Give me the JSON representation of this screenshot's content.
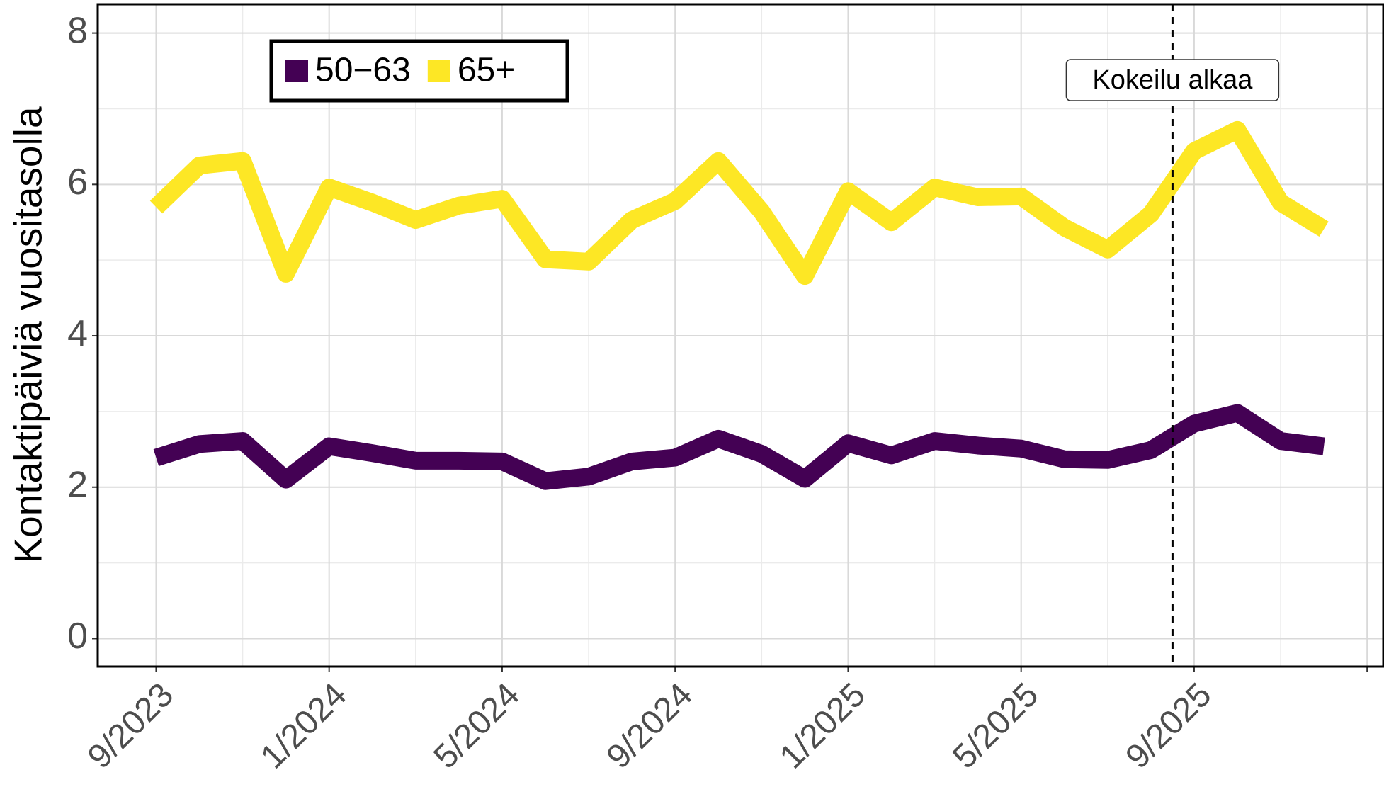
{
  "chart_data": {
    "type": "line",
    "y_label": "Kontaktipäiviä vuositasolla",
    "x": [
      "9/2023",
      "10/2023",
      "11/2023",
      "12/2023",
      "1/2024",
      "2/2024",
      "3/2024",
      "4/2024",
      "5/2024",
      "6/2024",
      "7/2024",
      "8/2024",
      "9/2024",
      "10/2024",
      "11/2024",
      "12/2024",
      "1/2025",
      "2/2025",
      "3/2025",
      "4/2025",
      "5/2025",
      "6/2025",
      "7/2025",
      "8/2025",
      "9/2025",
      "10/2025",
      "11/2025",
      "12/2025"
    ],
    "xticks": [
      "9/2023",
      "1/2024",
      "5/2024",
      "9/2024",
      "1/2025",
      "5/2025",
      "9/2025"
    ],
    "series": [
      {
        "name": "50−63",
        "color": "#440154",
        "values": [
          2.39,
          2.57,
          2.61,
          2.1,
          2.54,
          2.45,
          2.35,
          2.35,
          2.34,
          2.08,
          2.14,
          2.34,
          2.39,
          2.64,
          2.44,
          2.11,
          2.58,
          2.42,
          2.61,
          2.55,
          2.51,
          2.37,
          2.36,
          2.49,
          2.84,
          2.98,
          2.61,
          2.54
        ]
      },
      {
        "name": "65+",
        "color": "#FDE725",
        "values": [
          5.7,
          6.25,
          6.31,
          4.82,
          5.96,
          5.76,
          5.53,
          5.72,
          5.81,
          5.01,
          4.98,
          5.53,
          5.78,
          6.31,
          5.64,
          4.79,
          5.91,
          5.5,
          5.96,
          5.83,
          5.84,
          5.43,
          5.14,
          5.61,
          6.44,
          6.72,
          5.76,
          5.41
        ]
      }
    ],
    "ylim": [
      -0.37,
      8.38
    ],
    "yticks": [
      0,
      2,
      4,
      6,
      8
    ],
    "grid": true,
    "legend": "top-left",
    "vline": {
      "x": "8/2025",
      "label": "Kokeilu alkaa"
    }
  }
}
